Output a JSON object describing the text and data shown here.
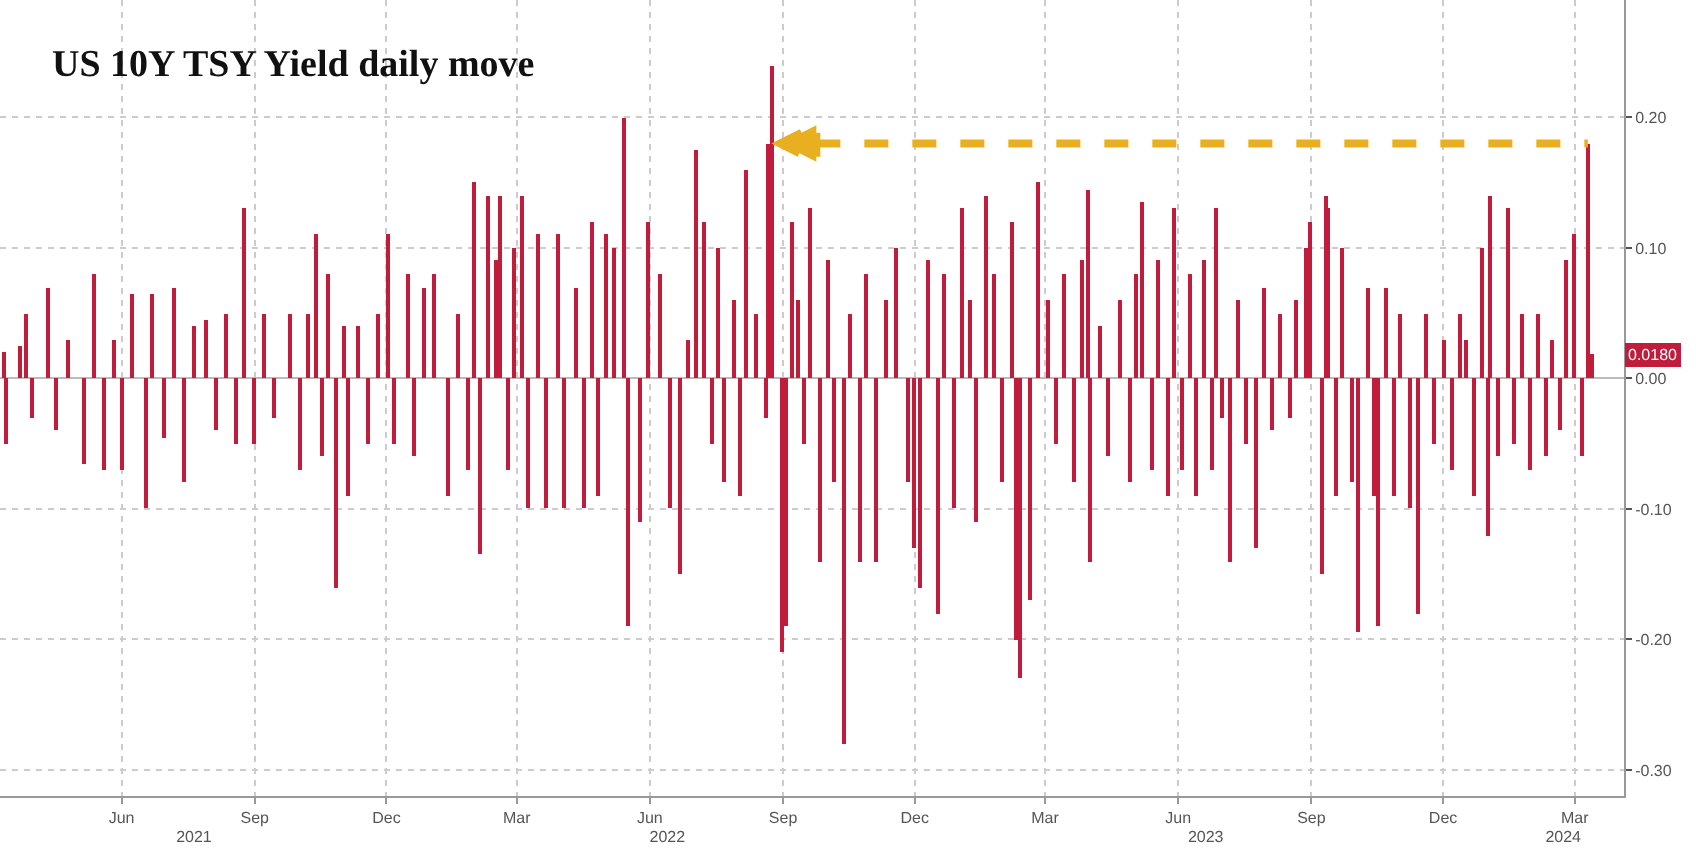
{
  "chart_data": {
    "type": "bar",
    "title": "US 10Y TSY Yield daily move",
    "x": [
      "2021-03-12",
      "2021-03-14",
      "2021-03-23",
      "2021-03-27",
      "2021-04-01",
      "2021-04-11",
      "2021-04-17",
      "2021-04-25",
      "2021-05-06",
      "2021-05-13",
      "2021-05-20",
      "2021-05-27",
      "2021-06-02",
      "2021-06-08",
      "2021-06-18",
      "2021-06-22",
      "2021-06-30",
      "2021-07-08",
      "2021-07-15",
      "2021-07-22",
      "2021-07-29",
      "2021-08-05",
      "2021-08-12",
      "2021-08-19",
      "2021-08-25",
      "2021-09-01",
      "2021-09-08",
      "2021-09-15",
      "2021-09-25",
      "2021-10-02",
      "2021-10-08",
      "2021-10-13",
      "2021-10-18",
      "2021-10-22",
      "2021-10-28",
      "2021-11-02",
      "2021-11-05",
      "2021-11-12",
      "2021-11-19",
      "2021-11-26",
      "2021-12-02",
      "2021-12-07",
      "2021-12-16",
      "2021-12-20",
      "2021-12-27",
      "2022-01-03",
      "2022-01-13",
      "2022-01-20",
      "2022-01-27",
      "2022-01-31",
      "2022-02-04",
      "2022-02-09",
      "2022-02-15",
      "2022-02-18",
      "2022-02-23",
      "2022-02-27",
      "2022-03-05",
      "2022-03-09",
      "2022-03-16",
      "2022-03-21",
      "2022-03-30",
      "2022-04-03",
      "2022-04-11",
      "2022-04-17",
      "2022-04-22",
      "2022-04-26",
      "2022-05-02",
      "2022-05-07",
      "2022-05-14",
      "2022-05-17",
      "2022-05-25",
      "2022-05-31",
      "2022-06-08",
      "2022-06-15",
      "2022-06-22",
      "2022-06-27",
      "2022-07-03",
      "2022-07-08",
      "2022-07-14",
      "2022-07-18",
      "2022-07-23",
      "2022-07-29",
      "2022-08-03",
      "2022-08-07",
      "2022-08-14",
      "2022-08-20",
      "2022-08-22",
      "2022-08-25",
      "2022-08-31",
      "2022-09-04",
      "2022-09-07",
      "2022-09-12",
      "2022-09-16",
      "2022-09-20",
      "2022-09-27",
      "2022-10-03",
      "2022-10-07",
      "2022-10-13",
      "2022-10-17",
      "2022-10-24",
      "2022-10-29",
      "2022-11-05",
      "2022-11-12",
      "2022-11-19",
      "2022-11-26",
      "2022-12-01",
      "2022-12-05",
      "2022-12-11",
      "2022-12-18",
      "2022-12-22",
      "2022-12-29",
      "2023-01-03",
      "2023-01-09",
      "2023-01-13",
      "2023-01-20",
      "2023-01-25",
      "2023-01-31",
      "2023-02-07",
      "2023-02-09",
      "2023-02-12",
      "2023-02-19",
      "2023-02-24",
      "2023-03-03",
      "2023-03-09",
      "2023-03-14",
      "2023-03-21",
      "2023-03-27",
      "2023-03-31",
      "2023-04-01",
      "2023-04-08",
      "2023-04-14",
      "2023-04-22",
      "2023-04-29",
      "2023-05-03",
      "2023-05-07",
      "2023-05-14",
      "2023-05-19",
      "2023-05-25",
      "2023-05-30",
      "2023-06-04",
      "2023-06-09",
      "2023-06-13",
      "2023-06-19",
      "2023-06-24",
      "2023-06-27",
      "2023-07-01",
      "2023-07-07",
      "2023-07-12",
      "2023-07-18",
      "2023-07-25",
      "2023-07-30",
      "2023-08-05",
      "2023-08-11",
      "2023-08-17",
      "2023-08-22",
      "2023-08-28",
      "2023-09-01",
      "2023-09-08",
      "2023-09-11",
      "2023-09-13",
      "2023-09-19",
      "2023-09-23",
      "2023-09-29",
      "2023-10-04",
      "2023-10-10",
      "2023-10-14",
      "2023-10-18",
      "2023-10-23",
      "2023-10-29",
      "2023-11-02",
      "2023-11-09",
      "2023-11-14",
      "2023-11-20",
      "2023-11-25",
      "2023-12-02",
      "2023-12-08",
      "2023-12-13",
      "2023-12-17",
      "2023-12-23",
      "2023-12-28",
      "2024-01-02",
      "2024-01-03",
      "2024-01-08",
      "2024-01-15",
      "2024-01-19",
      "2024-01-25",
      "2024-01-30",
      "2024-02-05",
      "2024-02-11",
      "2024-02-15",
      "2024-02-20",
      "2024-02-24",
      "2024-03-01",
      "2024-03-06",
      "2024-03-10",
      "2024-03-13"
    ],
    "values": [
      0.02,
      -0.05,
      0.025,
      0.05,
      -0.03,
      0.07,
      -0.04,
      0.03,
      -0.065,
      0.08,
      -0.07,
      0.03,
      -0.07,
      0.065,
      -0.1,
      0.065,
      -0.045,
      0.07,
      -0.08,
      0.04,
      0.045,
      -0.04,
      0.05,
      -0.05,
      0.13,
      -0.05,
      0.05,
      -0.03,
      0.05,
      -0.07,
      0.05,
      0.11,
      -0.06,
      0.08,
      -0.16,
      0.04,
      -0.09,
      0.04,
      -0.05,
      0.05,
      0.11,
      -0.05,
      0.08,
      -0.06,
      0.07,
      0.08,
      -0.09,
      0.05,
      -0.07,
      0.15,
      -0.135,
      0.14,
      0.09,
      0.14,
      -0.07,
      0.1,
      0.14,
      -0.1,
      0.11,
      -0.1,
      0.11,
      -0.1,
      0.07,
      -0.1,
      0.12,
      -0.09,
      0.11,
      0.1,
      0.2,
      -0.19,
      -0.11,
      0.12,
      0.08,
      -0.1,
      -0.15,
      0.03,
      0.175,
      0.12,
      -0.05,
      0.1,
      -0.08,
      0.06,
      -0.09,
      0.16,
      0.05,
      -0.03,
      0.18,
      0.24,
      -0.21,
      -0.19,
      0.12,
      0.06,
      -0.05,
      0.13,
      -0.14,
      0.09,
      -0.08,
      -0.28,
      0.05,
      -0.14,
      0.08,
      -0.14,
      0.06,
      0.1,
      -0.08,
      -0.13,
      -0.16,
      0.09,
      -0.18,
      0.08,
      -0.1,
      0.13,
      0.06,
      -0.11,
      0.14,
      0.08,
      -0.08,
      0.12,
      -0.2,
      -0.23,
      -0.17,
      0.15,
      0.06,
      -0.05,
      0.08,
      -0.08,
      0.09,
      0.145,
      -0.14,
      0.04,
      -0.06,
      0.06,
      -0.08,
      0.08,
      0.135,
      -0.07,
      0.09,
      -0.09,
      0.13,
      -0.07,
      0.08,
      -0.09,
      0.09,
      -0.07,
      0.13,
      -0.03,
      -0.14,
      0.06,
      -0.05,
      -0.13,
      0.07,
      -0.04,
      0.05,
      -0.03,
      0.06,
      0.1,
      0.12,
      -0.15,
      0.14,
      0.13,
      -0.09,
      0.1,
      -0.08,
      -0.195,
      0.07,
      -0.09,
      -0.19,
      0.07,
      -0.09,
      0.05,
      -0.1,
      -0.18,
      0.05,
      -0.05,
      0.03,
      -0.07,
      0.05,
      0.03,
      -0.09,
      0.1,
      -0.12,
      0.14,
      -0.06,
      0.13,
      -0.05,
      0.05,
      -0.07,
      0.05,
      -0.06,
      0.03,
      -0.04,
      0.09,
      0.11,
      -0.06,
      0.18,
      0.018
    ],
    "color": "#c01c3c",
    "xlim": [
      "2021-03-09",
      "2024-04-04"
    ],
    "xticks": [
      {
        "value": "2021-06-01",
        "label": "Jun"
      },
      {
        "value": "2021-09-01",
        "label": "Sep"
      },
      {
        "value": "2021-12-01",
        "label": "Dec"
      },
      {
        "value": "2022-03-01",
        "label": "Mar"
      },
      {
        "value": "2022-06-01",
        "label": "Jun"
      },
      {
        "value": "2022-09-01",
        "label": "Sep"
      },
      {
        "value": "2022-12-01",
        "label": "Dec"
      },
      {
        "value": "2023-03-01",
        "label": "Mar"
      },
      {
        "value": "2023-06-01",
        "label": "Jun"
      },
      {
        "value": "2023-09-01",
        "label": "Sep"
      },
      {
        "value": "2023-12-01",
        "label": "Dec"
      },
      {
        "value": "2024-03-01",
        "label": "Mar"
      }
    ],
    "x2lim": [
      "2021-03-09",
      "2024-04-04"
    ],
    "x2ticks": [
      {
        "value": "2021-07-21",
        "label": "2021"
      },
      {
        "value": "2022-06-13",
        "label": "2022"
      },
      {
        "value": "2023-06-20",
        "label": "2023"
      },
      {
        "value": "2024-02-22",
        "label": "2024"
      }
    ],
    "ylim": [
      -0.32,
      0.29
    ],
    "yticks": [
      {
        "value": -0.3,
        "label": "-0.30"
      },
      {
        "value": -0.2,
        "label": "-0.20"
      },
      {
        "value": -0.1,
        "label": "-0.10"
      },
      {
        "value": 0,
        "label": "0.00"
      },
      {
        "value": 0.1,
        "label": "0.10"
      },
      {
        "value": 0.2,
        "label": "0.20"
      }
    ],
    "grid": true,
    "ref_lines": [
      {
        "axis": "y",
        "value": 0.18,
        "color": "#e8b020",
        "line_style": "dashed"
      }
    ],
    "annotations": [
      {
        "text": "0.0180",
        "y": 0.018
      }
    ]
  }
}
